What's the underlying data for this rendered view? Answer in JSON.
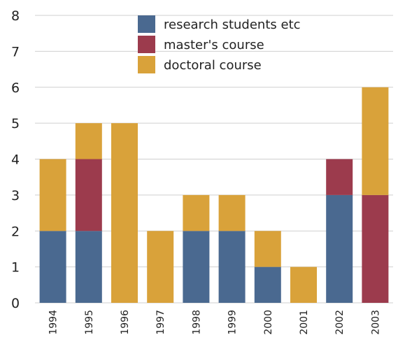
{
  "chart_data": {
    "type": "bar",
    "stacked": true,
    "categories": [
      "1994",
      "1995",
      "1996",
      "1997",
      "1998",
      "1999",
      "2000",
      "2001",
      "2002",
      "2003"
    ],
    "series": [
      {
        "name": "research students etc",
        "color": "#4a6990",
        "values": [
          2,
          2,
          0,
          0,
          2,
          2,
          1,
          0,
          3,
          0
        ]
      },
      {
        "name": "master's course",
        "color": "#9c3b4d",
        "values": [
          0,
          2,
          0,
          0,
          0,
          0,
          0,
          0,
          1,
          3
        ]
      },
      {
        "name": "doctoral course",
        "color": "#d9a23a",
        "values": [
          2,
          1,
          5,
          2,
          1,
          1,
          1,
          1,
          0,
          3
        ]
      }
    ],
    "yticks": [
      0,
      1,
      2,
      3,
      4,
      5,
      6,
      7,
      8
    ],
    "ylim": [
      0,
      8
    ],
    "grid": true,
    "legend": "top-center",
    "title": "",
    "xlabel": "",
    "ylabel": ""
  }
}
